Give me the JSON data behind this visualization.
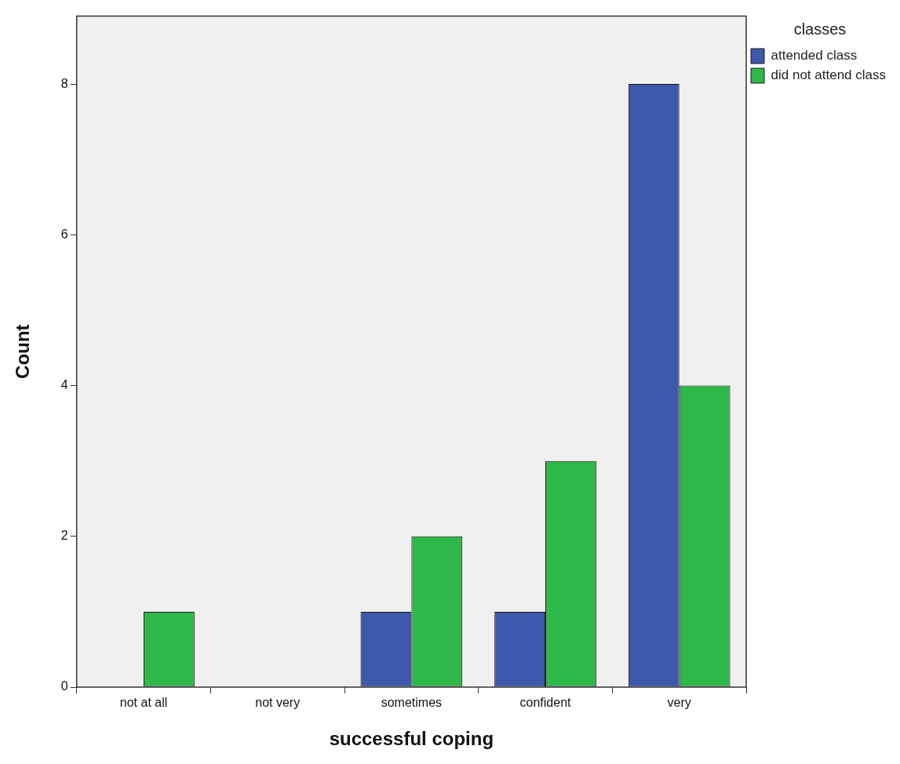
{
  "chart_data": {
    "type": "bar",
    "xlabel": "successful coping",
    "ylabel": "Count",
    "legend_title": "classes",
    "categories": [
      "not at all",
      "not very",
      "sometimes",
      "confident",
      "very"
    ],
    "series": [
      {
        "name": "attended class",
        "color": "#3e58ac",
        "values": [
          0,
          0,
          1,
          1,
          8
        ]
      },
      {
        "name": "did not attend class",
        "color": "#2fb84a",
        "values": [
          1,
          0,
          2,
          3,
          4
        ]
      }
    ],
    "ylim": [
      0,
      8.9
    ],
    "yticks": [
      0,
      2,
      4,
      6,
      8
    ],
    "grid": false,
    "legend": "top right"
  }
}
